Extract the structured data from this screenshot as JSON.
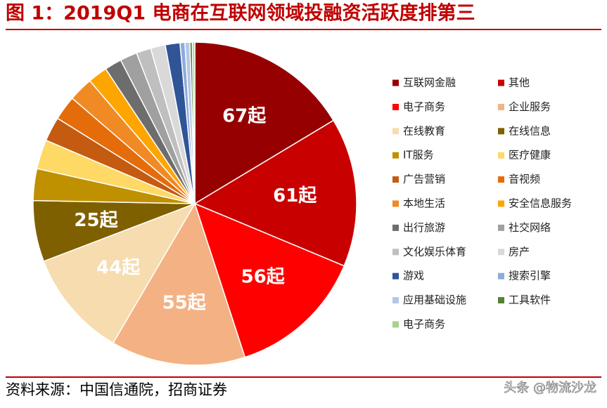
{
  "chart_data": {
    "type": "pie",
    "title": "图 1：2019Q1 电商在互联网领域投融资活跃度排第三",
    "source": "资料来源：中国信通院，招商证券",
    "watermark": "头条 @物流沙龙",
    "categories": [
      "互联网金融",
      "其他",
      "电子商务",
      "企业服务",
      "在线教育",
      "在线信息",
      "IT服务",
      "医疗健康",
      "广告营销",
      "音视频",
      "本地生活",
      "安全信息服务",
      "出行旅游",
      "社交网络",
      "文化娱乐体育",
      "房产",
      "游戏",
      "搜索引擎",
      "应用基础设施",
      "工具软件",
      "电子商务"
    ],
    "values": [
      67,
      61,
      56,
      55,
      44,
      25,
      13,
      12,
      10,
      10,
      10,
      8,
      7,
      7,
      6,
      6,
      6,
      2,
      2,
      1,
      1
    ],
    "value_labels": [
      "67起",
      "61起",
      "56起",
      "55起",
      "44起",
      "25起",
      null,
      null,
      null,
      null,
      null,
      null,
      null,
      null,
      null,
      null,
      null,
      null,
      null,
      null,
      null
    ],
    "colors": [
      "#960000",
      "#c80000",
      "#ff0000",
      "#f4b183",
      "#f6dcae",
      "#7f6000",
      "#bf9000",
      "#ffd966",
      "#c55a11",
      "#e46c0a",
      "#f08a24",
      "#ffa500",
      "#6d6d6d",
      "#a0a0a0",
      "#bfbfbf",
      "#d9d9d9",
      "#2f5597",
      "#8faadc",
      "#b4c7e7",
      "#548235",
      "#a9d18e"
    ]
  }
}
